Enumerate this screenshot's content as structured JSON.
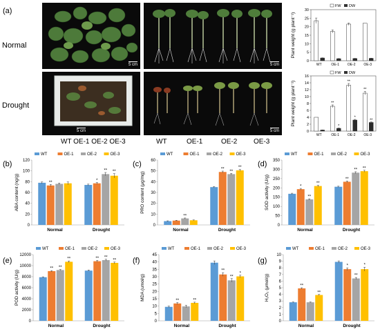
{
  "figure": {
    "panel_a": {
      "letter": "(a)",
      "row_labels": [
        "Normal",
        "Drought"
      ],
      "scale_bar": "5 cm",
      "col_labels_box": "WT OE-1 OE-2 OE-3",
      "col_labels_rooted": [
        "WT",
        "OE-1",
        "OE-2",
        "OE-3"
      ]
    },
    "colors": {
      "WT": "#5b9bd5",
      "OE-1": "#ed7d31",
      "OE-2": "#a5a5a5",
      "OE-3": "#ffc000"
    }
  },
  "chart_data": [
    {
      "id": "a-normal",
      "type": "bar",
      "ylabel": "Plant weight (g plant⁻¹)",
      "ylim": [
        0,
        30
      ],
      "ticks": [
        0,
        5,
        10,
        15,
        20,
        25,
        30
      ],
      "categories": [
        "WT",
        "OE-1",
        "OE-2",
        "OE-3"
      ],
      "legend": [
        "FW",
        "DW"
      ],
      "series": [
        {
          "name": "FW",
          "values": [
            23.5,
            17.2,
            21.5,
            22.0
          ],
          "err": [
            1.6,
            0.9,
            0.7,
            0.0
          ],
          "sig": [
            "",
            "",
            "",
            ""
          ]
        },
        {
          "name": "DW",
          "values": [
            1.6,
            1.2,
            1.3,
            1.4
          ],
          "err": [
            0.1,
            0.1,
            0.1,
            0.1
          ],
          "sig": [
            "",
            "",
            "",
            ""
          ]
        }
      ]
    },
    {
      "id": "a-drought",
      "type": "bar",
      "ylabel": "Plant weight (g plant⁻¹)",
      "ylim": [
        0,
        16
      ],
      "ticks": [
        0,
        2,
        4,
        6,
        8,
        10,
        12,
        14,
        16
      ],
      "categories": [
        "WT",
        "OE-1",
        "OE-2",
        "OE-3"
      ],
      "legend": [
        "FW",
        "DW"
      ],
      "series": [
        {
          "name": "FW",
          "values": [
            4.0,
            7.2,
            13.3,
            11.0
          ],
          "err": [
            0.0,
            0.4,
            0.5,
            0.5
          ],
          "sig": [
            "",
            "**",
            "**",
            "**"
          ]
        },
        {
          "name": "DW",
          "values": [
            0.3,
            0.8,
            3.2,
            2.5
          ],
          "err": [
            0.05,
            0.1,
            0.2,
            0.15
          ],
          "sig": [
            "",
            "*",
            "*",
            "**"
          ]
        }
      ]
    },
    {
      "id": "b",
      "letter": "(b)",
      "type": "bar",
      "ylabel": "ABA content (ng/g)",
      "ylim": [
        0,
        120
      ],
      "ticks": [
        0,
        20,
        40,
        60,
        80,
        100,
        120
      ],
      "categories": [
        "Normal",
        "Drought"
      ],
      "legend": [
        "WT",
        "OE-1",
        "OE-2",
        "OE-3"
      ],
      "series": [
        {
          "name": "WT",
          "values": [
            78,
            74
          ],
          "err": [
            1.5,
            1.5
          ],
          "sig": [
            "",
            ""
          ]
        },
        {
          "name": "OE-1",
          "values": [
            73,
            77
          ],
          "err": [
            2,
            1.5
          ],
          "sig": [
            "**",
            "*"
          ]
        },
        {
          "name": "OE-2",
          "values": [
            76,
            94
          ],
          "err": [
            1.5,
            3
          ],
          "sig": [
            "",
            "**"
          ]
        },
        {
          "name": "OE-3",
          "values": [
            77,
            91
          ],
          "err": [
            2.5,
            4
          ],
          "sig": [
            "",
            "**"
          ]
        }
      ]
    },
    {
      "id": "c",
      "letter": "(c)",
      "type": "bar",
      "ylabel": "PRO content (μg/mg)",
      "ylim": [
        0,
        60
      ],
      "ticks": [
        0,
        10,
        20,
        30,
        40,
        50,
        60
      ],
      "categories": [
        "Normal",
        "Drought"
      ],
      "legend": [
        "WT",
        "OE-1",
        "OE-2",
        "OE-3"
      ],
      "series": [
        {
          "name": "WT",
          "values": [
            3.5,
            35
          ],
          "err": [
            0.3,
            0.5
          ],
          "sig": [
            "",
            ""
          ]
        },
        {
          "name": "OE-1",
          "values": [
            4,
            49
          ],
          "err": [
            0.3,
            0.8
          ],
          "sig": [
            "",
            "**"
          ]
        },
        {
          "name": "OE-2",
          "values": [
            6,
            47
          ],
          "err": [
            0.4,
            0.7
          ],
          "sig": [
            "**",
            "**"
          ]
        },
        {
          "name": "OE-3",
          "values": [
            4.3,
            50.5
          ],
          "err": [
            0.3,
            0.8
          ],
          "sig": [
            "",
            "**"
          ]
        }
      ]
    },
    {
      "id": "d",
      "letter": "(d)",
      "type": "bar",
      "ylabel": "SOD activity (U/g)",
      "ylim": [
        0,
        350
      ],
      "ticks": [
        0,
        50,
        100,
        150,
        200,
        250,
        300,
        350
      ],
      "categories": [
        "Normal",
        "Drought"
      ],
      "legend": [
        "WT",
        "OE-1",
        "OE-2",
        "OE-3"
      ],
      "series": [
        {
          "name": "WT",
          "values": [
            168,
            206
          ],
          "err": [
            3,
            3
          ],
          "sig": [
            "",
            ""
          ]
        },
        {
          "name": "OE-1",
          "values": [
            193,
            233
          ],
          "err": [
            4,
            4
          ],
          "sig": [
            "*",
            "**"
          ]
        },
        {
          "name": "OE-2",
          "values": [
            138,
            282
          ],
          "err": [
            3,
            5
          ],
          "sig": [
            "**",
            "**"
          ]
        },
        {
          "name": "OE-3",
          "values": [
            210,
            290
          ],
          "err": [
            4,
            5
          ],
          "sig": [
            "**",
            "**"
          ]
        }
      ]
    },
    {
      "id": "e",
      "letter": "(e)",
      "type": "bar",
      "ylabel": "POD activity (U/g)",
      "ylim": [
        0,
        12000
      ],
      "ticks": [
        0,
        2000,
        4000,
        6000,
        8000,
        10000,
        12000
      ],
      "categories": [
        "Normal",
        "Drought"
      ],
      "legend": [
        "WT",
        "OE-1",
        "OE-2",
        "OE-3"
      ],
      "series": [
        {
          "name": "WT",
          "values": [
            7900,
            9100
          ],
          "err": [
            80,
            100
          ],
          "sig": [
            "",
            ""
          ]
        },
        {
          "name": "OE-1",
          "values": [
            9000,
            10800
          ],
          "err": [
            100,
            150
          ],
          "sig": [
            "**",
            "**"
          ]
        },
        {
          "name": "OE-2",
          "values": [
            9200,
            11000
          ],
          "err": [
            100,
            150
          ],
          "sig": [
            "**",
            "**"
          ]
        },
        {
          "name": "OE-3",
          "values": [
            10700,
            10500
          ],
          "err": [
            150,
            150
          ],
          "sig": [
            "**",
            "**"
          ]
        }
      ]
    },
    {
      "id": "f",
      "letter": "(f)",
      "type": "bar",
      "ylabel": "MDA (umol/g)",
      "ylim": [
        0,
        45
      ],
      "ticks": [
        0,
        5,
        10,
        15,
        20,
        25,
        30,
        35,
        40,
        45
      ],
      "categories": [
        "Normal",
        "Drought"
      ],
      "legend": [
        "WT",
        "OE-1",
        "OE-2",
        "OE-3"
      ],
      "series": [
        {
          "name": "WT",
          "values": [
            9.5,
            39.5
          ],
          "err": [
            0.5,
            1.2
          ],
          "sig": [
            "",
            ""
          ]
        },
        {
          "name": "OE-1",
          "values": [
            11.8,
            31.5
          ],
          "err": [
            0.6,
            1.2
          ],
          "sig": [
            "**",
            "**"
          ]
        },
        {
          "name": "OE-2",
          "values": [
            9.8,
            27.5
          ],
          "err": [
            0.8,
            1.2
          ],
          "sig": [
            "",
            "**"
          ]
        },
        {
          "name": "OE-3",
          "values": [
            12.2,
            30.2
          ],
          "err": [
            0.5,
            0.8
          ],
          "sig": [
            "**",
            "*"
          ]
        }
      ]
    },
    {
      "id": "g",
      "letter": "(g)",
      "type": "bar",
      "ylabel": "H₂O₂ (μmol/g)",
      "ylim": [
        0,
        10
      ],
      "ticks": [
        0,
        1,
        2,
        3,
        4,
        5,
        6,
        7,
        8,
        9,
        10
      ],
      "categories": [
        "Normal",
        "Drought"
      ],
      "legend": [
        "WT",
        "OE-1",
        "OE-2",
        "OE-3"
      ],
      "series": [
        {
          "name": "WT",
          "values": [
            2.8,
            8.9
          ],
          "err": [
            0.05,
            0.15
          ],
          "sig": [
            "",
            ""
          ]
        },
        {
          "name": "OE-1",
          "values": [
            4.9,
            7.8
          ],
          "err": [
            0.1,
            0.2
          ],
          "sig": [
            "**",
            "*"
          ]
        },
        {
          "name": "OE-2",
          "values": [
            2.8,
            6.4
          ],
          "err": [
            0.05,
            0.15
          ],
          "sig": [
            "",
            "**"
          ]
        },
        {
          "name": "OE-3",
          "values": [
            3.9,
            7.8
          ],
          "err": [
            0.08,
            0.3
          ],
          "sig": [
            "**",
            "*"
          ]
        }
      ]
    }
  ]
}
